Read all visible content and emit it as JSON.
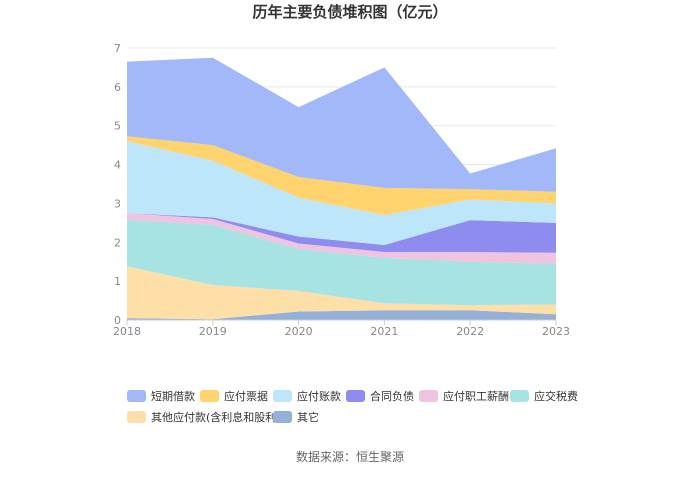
{
  "chart_data": {
    "type": "area",
    "stacked": true,
    "title": "历年主要负债堆积图（亿元）",
    "xlabel": "",
    "ylabel": "",
    "categories": [
      "2018",
      "2019",
      "2020",
      "2021",
      "2022",
      "2023"
    ],
    "ylim": [
      0,
      7
    ],
    "yticks": [
      0,
      1,
      2,
      3,
      4,
      5,
      6,
      7
    ],
    "grid": true,
    "legend_position": "bottom",
    "series": [
      {
        "name": "其它",
        "color": "#94afd8",
        "values": [
          0.05,
          0.02,
          0.22,
          0.25,
          0.25,
          0.15
        ]
      },
      {
        "name": "其他应付款(含利息和股利)",
        "color": "#ffdfa8",
        "values": [
          1.33,
          0.88,
          0.53,
          0.18,
          0.13,
          0.25
        ]
      },
      {
        "name": "应交税费",
        "color": "#a7e3e3",
        "values": [
          1.2,
          1.55,
          1.08,
          1.17,
          1.12,
          1.05
        ]
      },
      {
        "name": "应付职工薪酬",
        "color": "#f0c4e0",
        "values": [
          0.17,
          0.15,
          0.14,
          0.15,
          0.25,
          0.28
        ]
      },
      {
        "name": "合同负债",
        "color": "#8f8cf0",
        "values": [
          0.0,
          0.04,
          0.18,
          0.18,
          0.82,
          0.77
        ]
      },
      {
        "name": "应付账款",
        "color": "#bde6fb",
        "values": [
          1.85,
          1.46,
          1.0,
          0.77,
          0.53,
          0.5
        ]
      },
      {
        "name": "应付票据",
        "color": "#ffd36e",
        "values": [
          0.13,
          0.4,
          0.53,
          0.7,
          0.27,
          0.3
        ]
      },
      {
        "name": "短期借款",
        "color": "#a3b8f8",
        "values": [
          1.92,
          2.25,
          1.8,
          3.1,
          0.4,
          1.12
        ]
      }
    ],
    "legend_order": [
      "短期借款",
      "应付票据",
      "应付账款",
      "合同负债",
      "应付职工薪酬",
      "应交税费",
      "其他应付款(含利息和股利)",
      "其它"
    ],
    "source": "数据来源：恒生聚源"
  }
}
